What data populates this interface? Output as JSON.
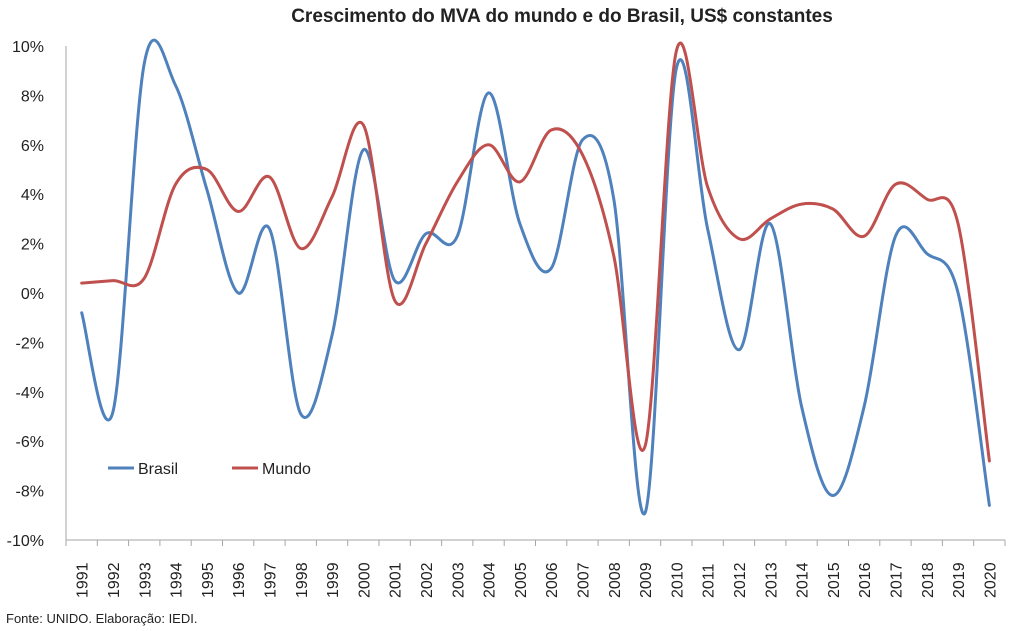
{
  "chart_data": {
    "type": "line",
    "title": "Crescimento do MVA do mundo e do Brasil, US$ constantes",
    "categories": [
      "1991",
      "1992",
      "1993",
      "1994",
      "1995",
      "1996",
      "1997",
      "1998",
      "1999",
      "2000",
      "2001",
      "2002",
      "2003",
      "2004",
      "2005",
      "2006",
      "2007",
      "2008",
      "2009",
      "2010",
      "2011",
      "2012",
      "2013",
      "2014",
      "2015",
      "2016",
      "2017",
      "2018",
      "2019",
      "2020"
    ],
    "series": [
      {
        "name": "Brasil",
        "color": "#4F81BD",
        "values": [
          -0.8,
          -4.8,
          9.3,
          8.4,
          4.2,
          0.0,
          2.6,
          -4.9,
          -1.7,
          5.8,
          0.5,
          2.4,
          2.3,
          8.1,
          2.8,
          1.0,
          6.2,
          3.8,
          -8.9,
          9.1,
          2.6,
          -2.3,
          2.8,
          -4.6,
          -8.2,
          -4.6,
          2.3,
          1.6,
          0.0,
          -8.6
        ]
      },
      {
        "name": "Mundo",
        "color": "#C0504D",
        "values": [
          0.4,
          0.5,
          0.6,
          4.4,
          5.0,
          3.3,
          4.7,
          1.8,
          3.9,
          6.8,
          -0.3,
          2.0,
          4.5,
          6.0,
          4.5,
          6.6,
          5.6,
          1.5,
          -6.2,
          9.8,
          4.3,
          2.2,
          3.0,
          3.6,
          3.4,
          2.3,
          4.4,
          3.8,
          2.8,
          -6.8
        ]
      }
    ],
    "ylim": [
      -10,
      10
    ],
    "ytick_step": 2,
    "ytick_labels": [
      "10%",
      "8%",
      "6%",
      "4%",
      "2%",
      "0%",
      "-2%",
      "-4%",
      "-6%",
      "-8%",
      "-10%"
    ],
    "xlabel": "",
    "ylabel": "",
    "grid": false,
    "legend_position": "inside-lower-left"
  },
  "source_note": "Fonte: UNIDO. Elaboração: IEDI."
}
